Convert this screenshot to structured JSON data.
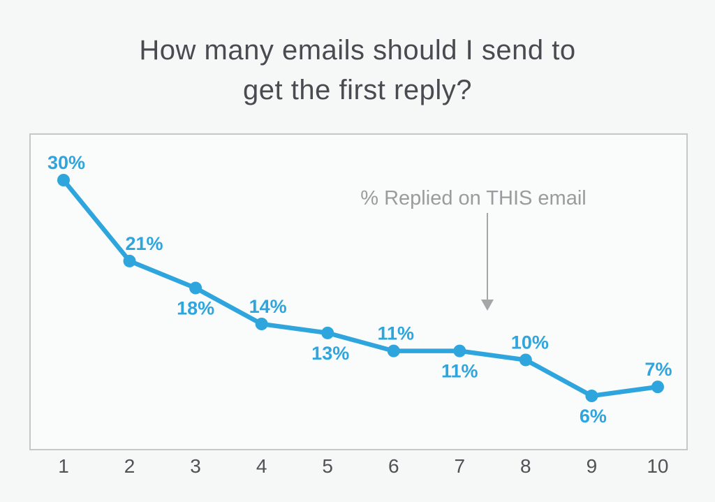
{
  "title": {
    "line1": "How many emails should I send to",
    "line2": "get the first reply?"
  },
  "chart_data": {
    "type": "line",
    "x": [
      "1",
      "2",
      "3",
      "4",
      "5",
      "6",
      "7",
      "8",
      "9",
      "10"
    ],
    "values": [
      30,
      21,
      18,
      14,
      13,
      11,
      11,
      10,
      6,
      7
    ],
    "point_labels": [
      "30%",
      "21%",
      "18%",
      "14%",
      "13%",
      "11%",
      "11%",
      "10%",
      "6%",
      "7%"
    ],
    "label_positions": [
      "above",
      "above",
      "below",
      "above",
      "below",
      "above",
      "below",
      "above",
      "below",
      "above"
    ],
    "label_dx": [
      4,
      21,
      0,
      9,
      4,
      3,
      0,
      6,
      2,
      1
    ],
    "title": "How many emails should I send to get the first reply?",
    "xlabel": "",
    "ylabel": "",
    "ylim": [
      0,
      35
    ],
    "grid": false,
    "legend": "none",
    "annotation": {
      "text": "% Replied on THIS email",
      "points_to_x": "7"
    },
    "colors": {
      "line": "#2EA5DC",
      "point": "#2EA5DC",
      "point_label": "#2EA5DC",
      "annotation_text": "#9B9B9D",
      "arrow": "#A5A6A8",
      "axis_label": "#515256",
      "title": "#4A4B50"
    }
  }
}
